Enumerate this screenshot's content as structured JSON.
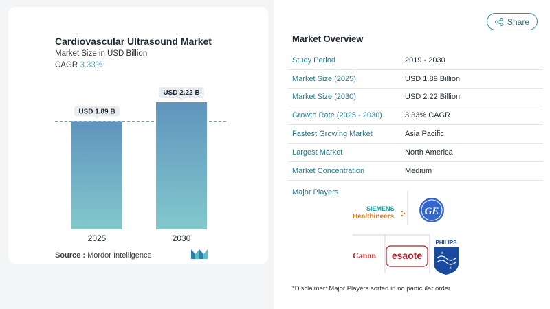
{
  "chart": {
    "title": "Cardiovascular Ultrasound Market",
    "subtitle": "Market Size in USD Billion",
    "cagr_label": "CAGR",
    "cagr_value": "3.33%",
    "source_label": "Source :",
    "source_value": "Mordor Intelligence"
  },
  "chart_data": {
    "type": "bar",
    "title": "Cardiovascular Ultrasound Market",
    "subtitle": "Market Size in USD Billion",
    "categories": [
      "2025",
      "2030"
    ],
    "values": [
      1.89,
      2.22
    ],
    "data_labels": [
      "USD 1.89 B",
      "USD 2.22 B"
    ],
    "reference_line": 1.89,
    "grid": false,
    "colors": {
      "bar_top": "#5f94bd",
      "bar_bottom": "#82c9cc",
      "label_bg": "#e9edf0",
      "cagr": "#4aa3c3"
    }
  },
  "share": {
    "label": "Share",
    "icon": "share-icon"
  },
  "overview": {
    "title": "Market Overview",
    "rows": [
      {
        "key": "Study Period",
        "value": "2019 - 2030"
      },
      {
        "key": "Market Size (2025)",
        "value": "USD 1.89 Billion"
      },
      {
        "key": "Market Size (2030)",
        "value": "USD 2.22 Billion"
      },
      {
        "key": "Growth Rate (2025 - 2030)",
        "value": "3.33% CAGR"
      },
      {
        "key": "Fastest Growing Market",
        "value": "Asia Pacific"
      },
      {
        "key": "Largest Market",
        "value": "North America"
      },
      {
        "key": "Market Concentration",
        "value": "Medium"
      }
    ]
  },
  "players": {
    "label": "Major Players",
    "logos": [
      "Siemens Healthineers",
      "GE",
      "Canon",
      "Esaote",
      "Philips"
    ]
  },
  "disclaimer": "*Disclaimer: Major Players sorted in no particular order"
}
